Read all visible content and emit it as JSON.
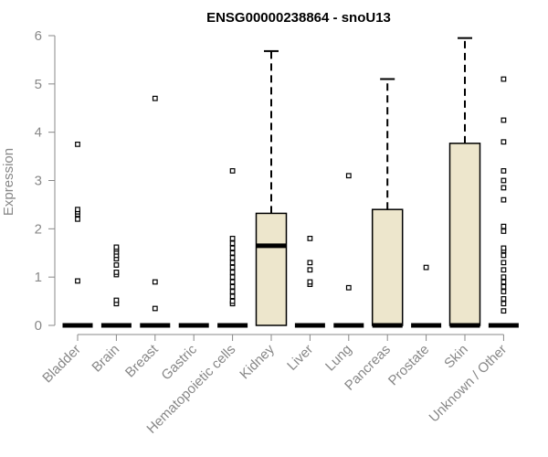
{
  "chart_data": {
    "type": "box",
    "title": "ENSG00000238864 - snoU13",
    "xlabel": "",
    "ylabel": "Expression",
    "ylim": [
      0,
      6
    ],
    "yticks": [
      0,
      1,
      2,
      3,
      4,
      5,
      6
    ],
    "box_fill": "#ede6cc",
    "categories": [
      "Bladder",
      "Brain",
      "Breast",
      "Gastric",
      "Hematopoietic cells",
      "Kidney",
      "Liver",
      "Lung",
      "Pancreas",
      "Prostate",
      "Skin",
      "Unknown / Other"
    ],
    "boxes": [
      {
        "category": "Bladder",
        "q1": 0,
        "median": 0,
        "q3": 0,
        "whisker_low": 0,
        "whisker_high": 0,
        "outliers": [
          0.92,
          2.2,
          2.3,
          2.35,
          2.4,
          3.75
        ]
      },
      {
        "category": "Brain",
        "q1": 0,
        "median": 0,
        "q3": 0,
        "whisker_low": 0,
        "whisker_high": 0,
        "outliers": [
          0.45,
          0.52,
          1.05,
          1.1,
          1.25,
          1.38,
          1.45,
          1.52,
          1.58,
          1.62
        ]
      },
      {
        "category": "Breast",
        "q1": 0,
        "median": 0,
        "q3": 0,
        "whisker_low": 0,
        "whisker_high": 0,
        "outliers": [
          0.35,
          0.9,
          4.7
        ]
      },
      {
        "category": "Gastric",
        "q1": 0,
        "median": 0,
        "q3": 0,
        "whisker_low": 0,
        "whisker_high": 0,
        "outliers": []
      },
      {
        "category": "Hematopoietic cells",
        "q1": 0,
        "median": 0,
        "q3": 0,
        "whisker_low": 0,
        "whisker_high": 0,
        "outliers": [
          0.45,
          0.5,
          0.6,
          0.7,
          0.8,
          0.9,
          1.0,
          1.1,
          1.2,
          1.3,
          1.4,
          1.5,
          1.6,
          1.7,
          1.8,
          3.2
        ]
      },
      {
        "category": "Kidney",
        "q1": 0,
        "median": 1.65,
        "q3": 2.32,
        "whisker_low": 0,
        "whisker_high": 5.68,
        "outliers": []
      },
      {
        "category": "Liver",
        "q1": 0,
        "median": 0,
        "q3": 0,
        "whisker_low": 0,
        "whisker_high": 0,
        "outliers": [
          0.85,
          0.9,
          1.15,
          1.3,
          1.8
        ]
      },
      {
        "category": "Lung",
        "q1": 0,
        "median": 0,
        "q3": 0,
        "whisker_low": 0,
        "whisker_high": 0,
        "outliers": [
          0.78,
          3.1
        ]
      },
      {
        "category": "Pancreas",
        "q1": 0,
        "median": 0,
        "q3": 2.4,
        "whisker_low": 0,
        "whisker_high": 5.1,
        "outliers": []
      },
      {
        "category": "Prostate",
        "q1": 0,
        "median": 0,
        "q3": 0,
        "whisker_low": 0,
        "whisker_high": 0,
        "outliers": [
          1.2
        ]
      },
      {
        "category": "Skin",
        "q1": 0,
        "median": 0,
        "q3": 3.77,
        "whisker_low": 0,
        "whisker_high": 5.95,
        "outliers": []
      },
      {
        "category": "Unknown / Other",
        "q1": 0,
        "median": 0,
        "q3": 0,
        "whisker_low": 0,
        "whisker_high": 0,
        "outliers": [
          0.3,
          0.45,
          0.55,
          0.7,
          0.8,
          0.9,
          1.0,
          1.15,
          1.3,
          1.45,
          1.55,
          1.6,
          1.95,
          2.05,
          2.6,
          2.85,
          3.0,
          3.2,
          3.8,
          4.25,
          5.1
        ]
      }
    ]
  }
}
